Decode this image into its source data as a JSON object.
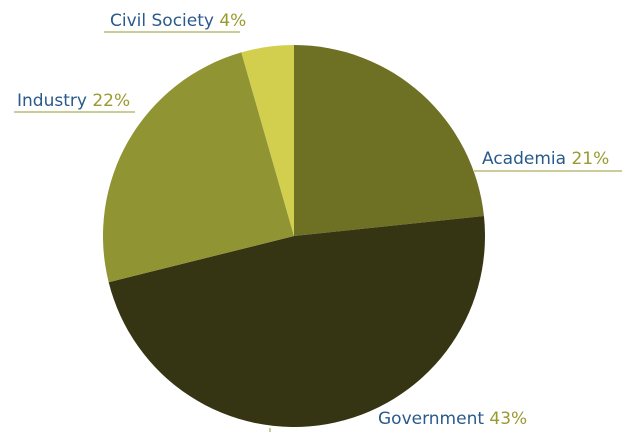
{
  "chart_data": {
    "type": "pie",
    "title": "",
    "slices": [
      {
        "label": "Academia",
        "value": 21,
        "value_label": "21%",
        "color": "#6e7023"
      },
      {
        "label": "Government",
        "value": 43,
        "value_label": "43%",
        "color": "#353514"
      },
      {
        "label": "Industry",
        "value": 22,
        "value_label": "22%",
        "color": "#919433"
      },
      {
        "label": "Civil Society",
        "value": 4,
        "value_label": "4%",
        "color": "#d2cf4f"
      }
    ],
    "start_angle_deg": 0,
    "direction": "clockwise",
    "label_name_color": "#2a5a8a",
    "label_value_color": "#9a9a30",
    "leader_line_color": "#9a9a30"
  }
}
